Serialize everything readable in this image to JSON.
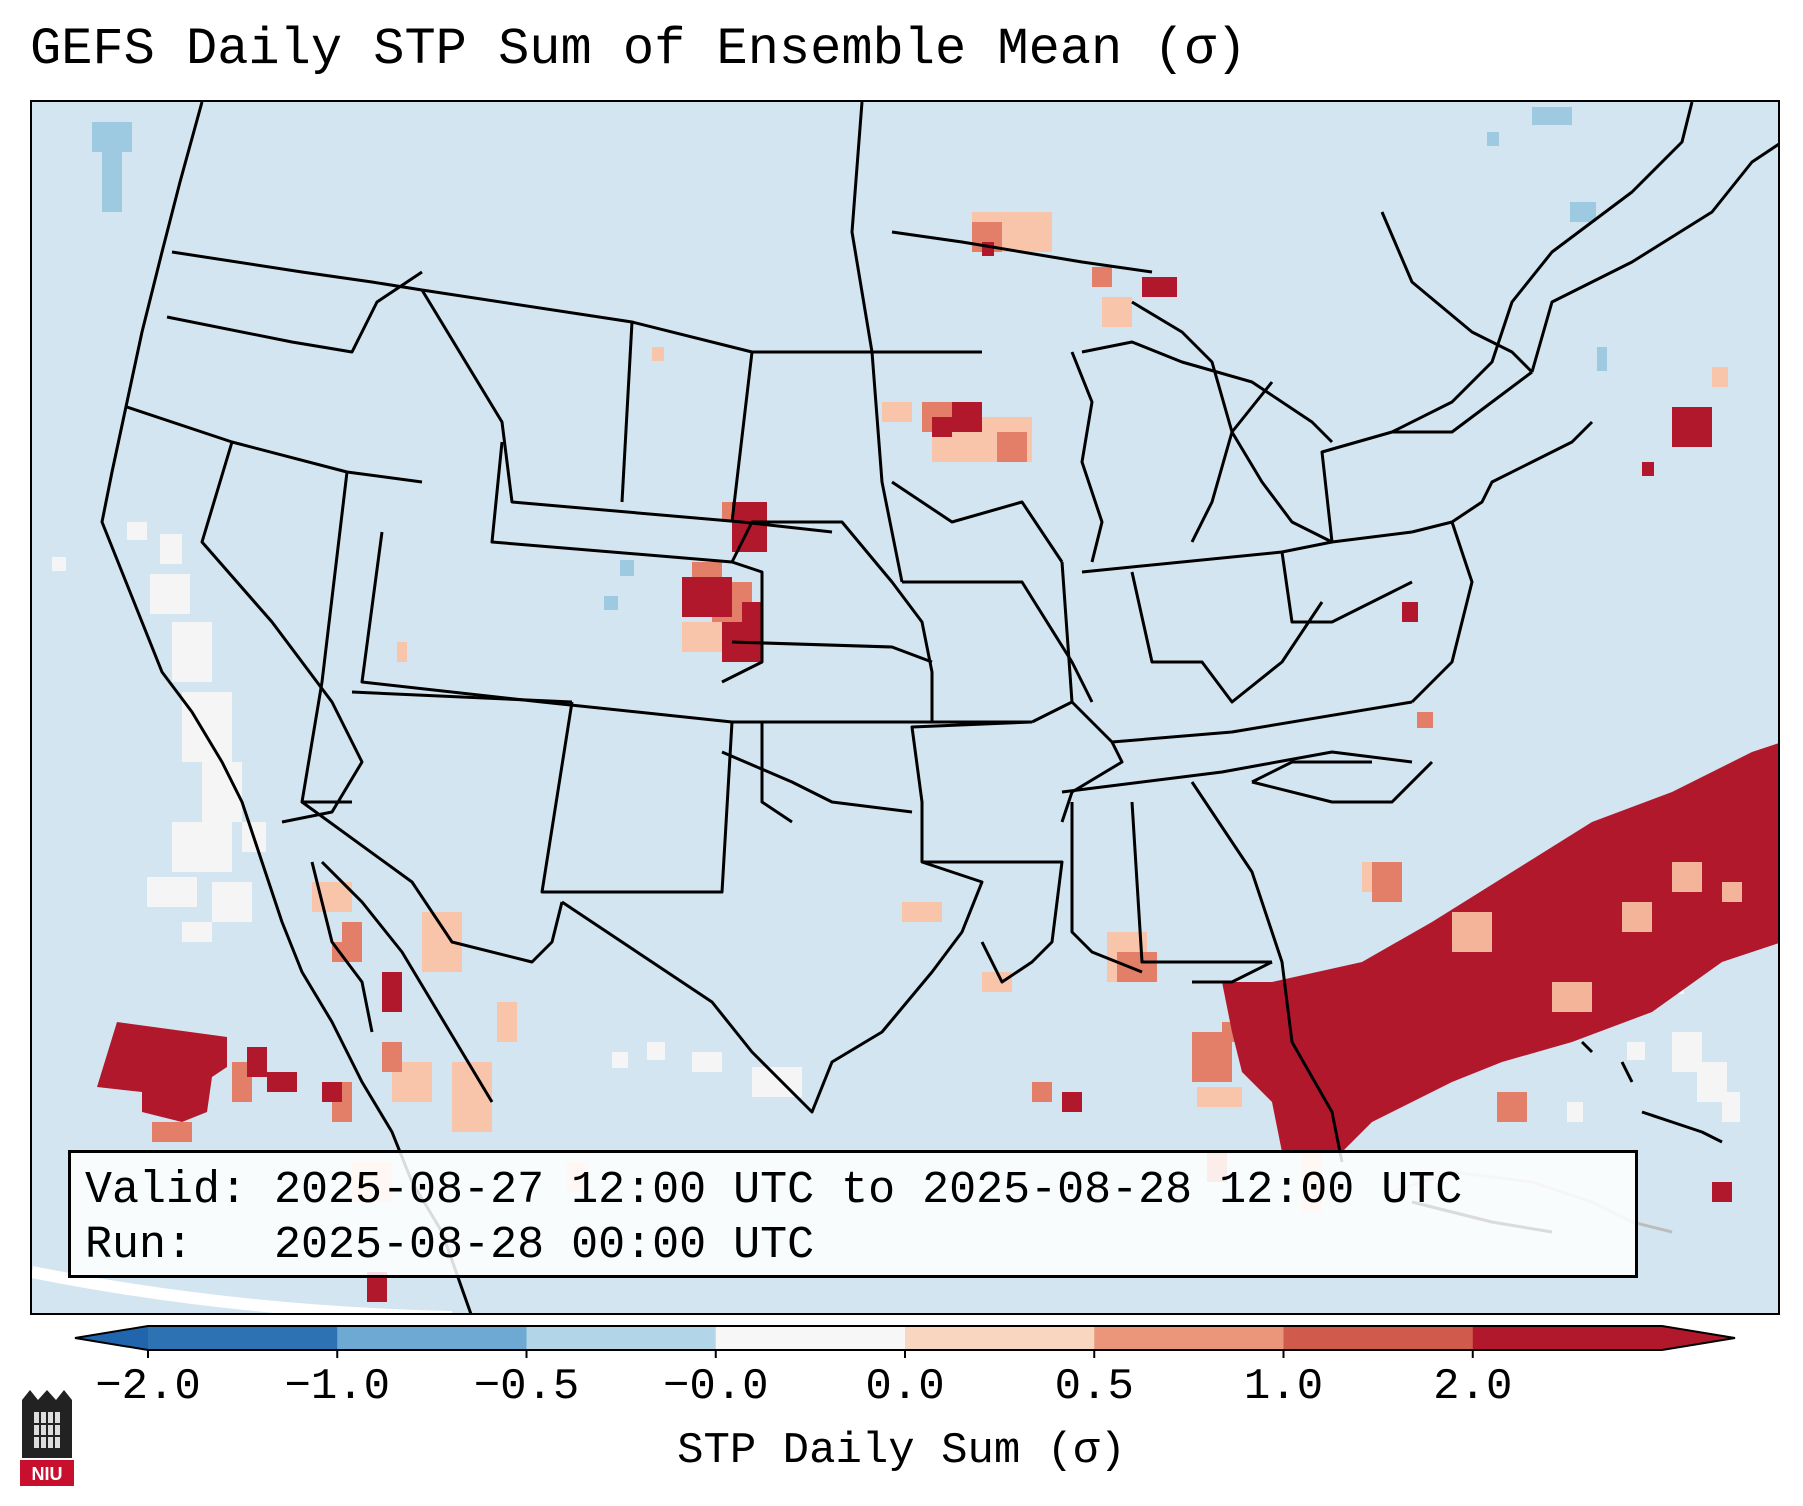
{
  "title": "GEFS Daily STP Sum of Ensemble Mean (σ)",
  "info": {
    "valid": "Valid: 2025-08-27 12:00 UTC to 2025-08-28 12:00 UTC",
    "run": "Run:   2025-08-28 00:00 UTC"
  },
  "colorbar": {
    "label": "STP Daily Sum (σ)",
    "ticks": [
      "−2.0",
      "−1.0",
      "−0.5",
      "−0.0",
      "0.0",
      "0.5",
      "1.0",
      "2.0"
    ],
    "colors": [
      "#2d73b4",
      "#6ea9d3",
      "#b3d5e8",
      "#f7f7f7",
      "#f9d6c0",
      "#eb957a",
      "#d05b4c",
      "#b2182b"
    ],
    "extend_low_color": "#2166ac",
    "extend_high_color": "#b2182b"
  },
  "logo": {
    "text": "NIU",
    "color": "#c8102e"
  },
  "map": {
    "ocean_color": "#d2e5f0",
    "region": "Continental United States"
  }
}
